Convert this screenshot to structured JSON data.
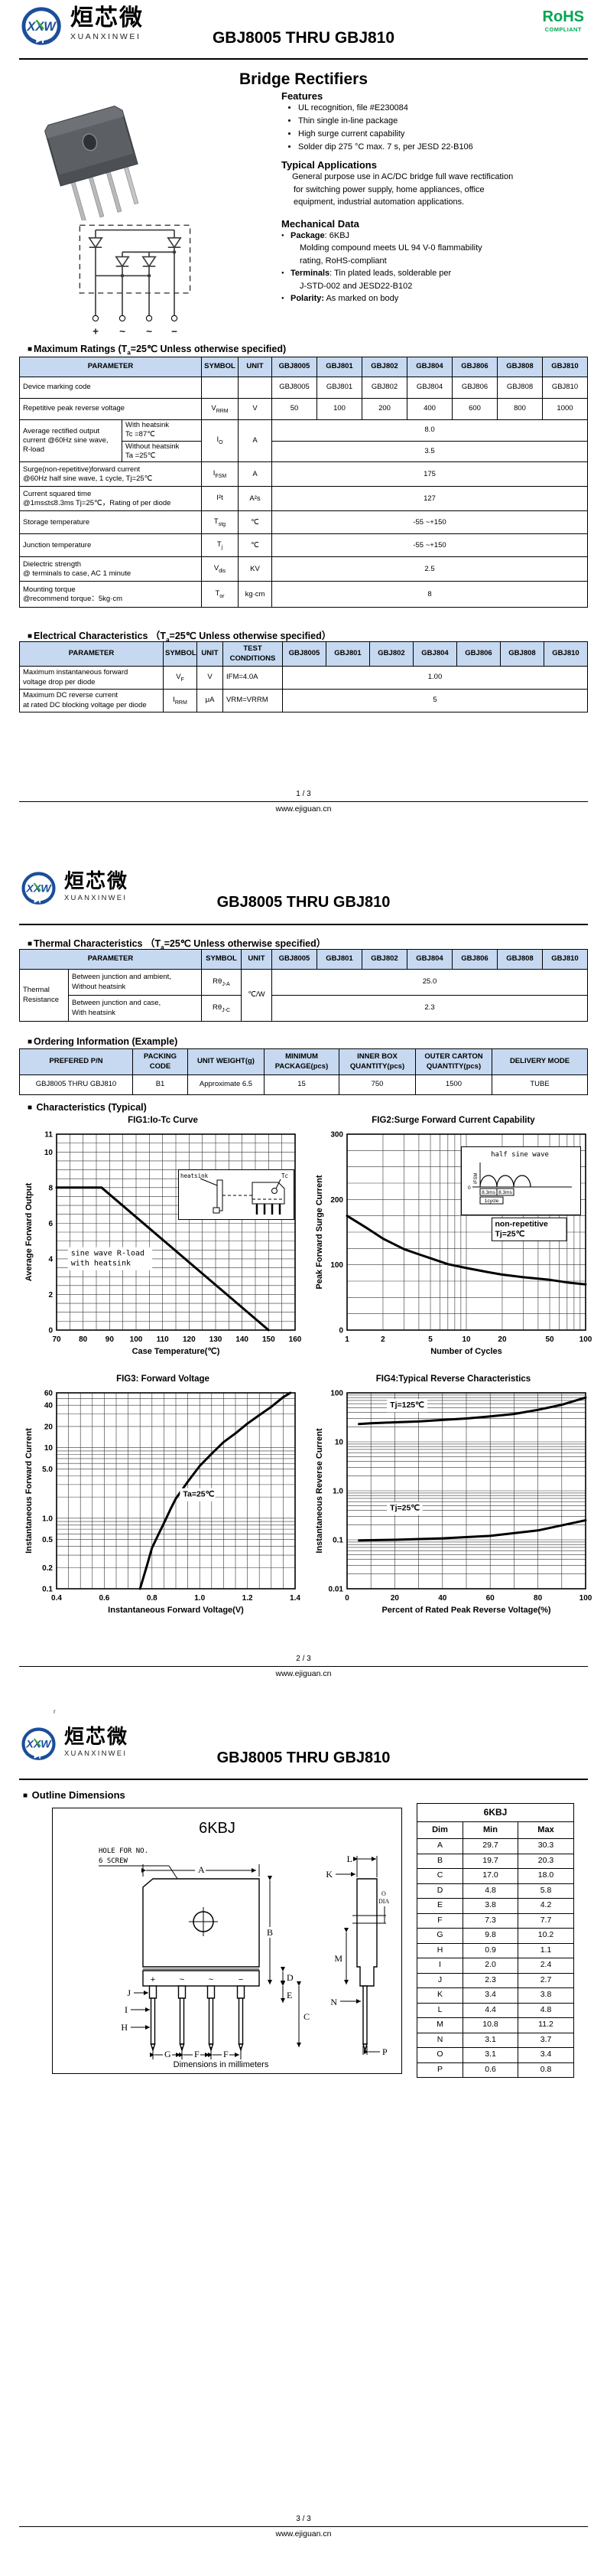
{
  "bullet": "■",
  "brand": {
    "cn": "烜芯微",
    "en": "XUANXINWEI",
    "monogram": "XXW"
  },
  "rohs": {
    "line1": "RoHS",
    "line2": "COMPLIANT"
  },
  "doc_title": "GBJ8005 THRU GBJ810",
  "subtitle": "Bridge Rectifiers",
  "stray": "r",
  "footer": {
    "url": "www.ejiguan.cn",
    "pages": [
      "1 / 3",
      "2 / 3",
      "3 / 3"
    ]
  },
  "products": [
    "GBJ8005",
    "GBJ801",
    "GBJ802",
    "GBJ804",
    "GBJ806",
    "GBJ808",
    "GBJ810"
  ],
  "cond_half": {
    "pre": "(T",
    "sub": "a",
    "post": "=25℃ Unless otherwise specified)"
  },
  "cond_full": {
    "pre": "（T",
    "sub": "a",
    "post": "=25℃ Unless otherwise specified）"
  },
  "features": {
    "heading": "Features",
    "items": [
      "UL recognition, file #E230084",
      "Thin single in-line package",
      "High surge current capability",
      "Solder dip 275 °C max. 7 s, per JESD 22-B106"
    ]
  },
  "apps": {
    "heading": "Typical Applications",
    "lines": [
      "General purpose use in AC/DC bridge full wave rectification",
      "for switching power supply, home appliances, office",
      "equipment, industrial automation applications."
    ]
  },
  "mech": {
    "heading": "Mechanical Data",
    "rows": [
      {
        "b": "Package",
        "t": ": 6KBJ",
        "bullet": true
      },
      {
        "b": "",
        "t": "Molding compound meets UL 94 V-0 flammability",
        "bullet": false
      },
      {
        "b": "",
        "t": "rating, RoHS-compliant",
        "bullet": false
      },
      {
        "b": "Terminals",
        "t": ": Tin plated leads, solderable  per",
        "bullet": true
      },
      {
        "b": "",
        "t": "J-STD-002 and JESD22-B102",
        "bullet": false
      },
      {
        "b": "Polarity:",
        "t": " As marked on body",
        "bullet": true
      }
    ]
  },
  "schematic": {
    "terminals": [
      "+",
      "~",
      "~",
      "−"
    ]
  },
  "max_ratings": {
    "heading": "Maximum Ratings",
    "cols": {
      "param": "PARAMETER",
      "symbol": "SYMBOL",
      "unit": "UNIT"
    },
    "marking": {
      "p": "Device marking code"
    },
    "vrrm": {
      "p": "Repetitive peak reverse voltage",
      "sb": "V",
      "ss": "RRM",
      "unit": "V",
      "vals": [
        "50",
        "100",
        "200",
        "400",
        "600",
        "800",
        "1000"
      ]
    },
    "io": {
      "p1": "Average rectified output",
      "p2": "current  @60Hz sine wave,",
      "p3": "R-load",
      "s1a": "With heatsink",
      "s1b": "Tc =87℃",
      "s2a": "Without heatsink",
      "s2b": "Ta =25℃",
      "sb": "I",
      "ss": "O",
      "unit": "A",
      "v1": "8.0",
      "v2": "3.5"
    },
    "ifsm": {
      "p1": "Surge(non-repetitive)forward current",
      "p2": "@60Hz half sine wave, 1 cycle, Tj=25℃",
      "sb": "I",
      "ss": "FSM",
      "unit": "A",
      "val": "175"
    },
    "i2t": {
      "p1": "Current squared time",
      "p2": "@1ms≤t≤8.3ms Tj=25℃，Rating of per diode",
      "sb": "I²t",
      "ss": "",
      "unit": "A²s",
      "val": "127"
    },
    "tstg": {
      "p1": "Storage temperature",
      "sb": "T",
      "ss": "stg",
      "unit": "℃",
      "val": "-55 ~+150"
    },
    "tj": {
      "p1": "Junction temperature",
      "sb": "T",
      "ss": "j",
      "unit": "℃",
      "val": "-55 ~+150"
    },
    "vdis": {
      "p1": "Dielectric strength",
      "p2": "@ terminals to case, AC 1 minute",
      "sb": "V",
      "ss": "dis",
      "unit": "KV",
      "val": "2.5"
    },
    "tor": {
      "p1": "Mounting torque",
      "p2": "@recommend torque：5kg·cm",
      "sb": "T",
      "ss": "or",
      "unit": "kg·cm",
      "val": "8"
    }
  },
  "electrical": {
    "heading": "Electrical Characteristics",
    "cols": {
      "param": "PARAMETER",
      "symbol": "SYMBOL",
      "unit": "UNIT",
      "test1": "TEST",
      "test2": "CONDITIONS"
    },
    "vf": {
      "p1": "Maximum instantaneous forward",
      "p2": "voltage drop per diode",
      "sb": "V",
      "ss": "F",
      "unit": "V",
      "test": "IFM=4.0A",
      "val": "1.00"
    },
    "irrm": {
      "p1": "Maximum DC reverse current",
      "p2": "at rated DC blocking voltage per diode",
      "sb": "I",
      "ss": "RRM",
      "unit": "μA",
      "test": "VRM=VRRM",
      "val": "5"
    }
  },
  "thermal": {
    "heading": "Thermal Characteristics",
    "cols": {
      "param": "PARAMETER",
      "symbol": "SYMBOL",
      "unit": "UNIT"
    },
    "group1": "Thermal",
    "group2": "Resistance",
    "unit": "℃/W",
    "r1": {
      "p1": "Between junction and ambient,",
      "p2": "Without heatsink",
      "sb": "Rθ",
      "ss": "J-A",
      "val": "25.0"
    },
    "r2": {
      "p1": "Between junction and case,",
      "p2": "With heatsink",
      "sb": "Rθ",
      "ss": "J-C",
      "val": "2.3"
    }
  },
  "ordering": {
    "heading": "Ordering Information (Example)",
    "cols": [
      [
        "PREFERED P/N"
      ],
      [
        "PACKING",
        "CODE"
      ],
      [
        "UNIT WEIGHT(g)"
      ],
      [
        "MINIMUM",
        "PACKAGE(pcs)"
      ],
      [
        "INNER BOX",
        "QUANTITY(pcs)"
      ],
      [
        "OUTER CARTON",
        "QUANTITY(pcs)"
      ],
      [
        "DELIVERY MODE"
      ]
    ],
    "row": [
      "GBJ8005 THRU GBJ810",
      "B1",
      "Approximate  6.5",
      "15",
      "750",
      "1500",
      "TUBE"
    ]
  },
  "charts_heading": "Characteristics (Typical)",
  "chart_data": [
    {
      "id": "fig1",
      "type": "line",
      "title": "FIG1:Io-Tc Curve",
      "xlabel": "Case Temperature(℃)",
      "ylabel": "Average Forward Output",
      "x_scale": "linear",
      "y_scale": "linear",
      "xlim": [
        70,
        160
      ],
      "ylim": [
        0,
        11
      ],
      "x_minor": 5,
      "y_minor": 0.5,
      "xticks": [
        70,
        80,
        90,
        100,
        110,
        120,
        130,
        140,
        150,
        160
      ],
      "xtick_labels": [
        "70",
        "80",
        "90",
        "100",
        "110",
        "120",
        "130",
        "140",
        "150",
        "160"
      ],
      "yticks": [
        0,
        2,
        4,
        6,
        8,
        10,
        11
      ],
      "ytick_labels": [
        "0",
        "2",
        "4",
        "6",
        "8",
        "10",
        "11"
      ],
      "series": [
        {
          "name": "Io with heatsink",
          "points": [
            [
              70,
              8
            ],
            [
              87,
              8
            ],
            [
              150,
              0
            ]
          ]
        }
      ],
      "annotations": [
        {
          "fx": 0.06,
          "fy": 0.62,
          "lines": [
            "sine wave R-load",
            "with heatsink"
          ],
          "box": true,
          "frame": false,
          "mono": true
        }
      ],
      "inset": {
        "heatsink": "heatsink",
        "tc": "Tc"
      }
    },
    {
      "id": "fig2",
      "type": "line",
      "title": "FIG2:Surge Forward Current Capability",
      "xlabel": "Number of Cycles",
      "ylabel": "Peak Forward Surge Current",
      "x_scale": "log",
      "y_scale": "linear",
      "xlim": [
        1,
        100
      ],
      "ylim": [
        0,
        300
      ],
      "y_minor": 25,
      "xticks": [
        1,
        2,
        5,
        10,
        20,
        50,
        100
      ],
      "xtick_labels": [
        "1",
        "2",
        "5",
        "10",
        "20",
        "50",
        "100"
      ],
      "yticks": [
        0,
        100,
        200,
        300
      ],
      "ytick_labels": [
        "0",
        "100",
        "200",
        "300"
      ],
      "series": [
        {
          "name": "IFSM",
          "points": [
            [
              1,
              175
            ],
            [
              1.5,
              155
            ],
            [
              2,
              140
            ],
            [
              3,
              124
            ],
            [
              4,
              116
            ],
            [
              5,
              110
            ],
            [
              7,
              101
            ],
            [
              10,
              95
            ],
            [
              15,
              89
            ],
            [
              20,
              85
            ],
            [
              30,
              81
            ],
            [
              50,
              77
            ],
            [
              70,
              73
            ],
            [
              100,
              70
            ]
          ]
        }
      ],
      "annotations": [
        {
          "fx": 0.62,
          "fy": 0.47,
          "lines": [
            "non-repetitive",
            "Tj=25℃"
          ],
          "box": true,
          "frame": true
        }
      ],
      "inset": {
        "caption": "half sine wave",
        "ifsm": "IFSM",
        "zero": "0",
        "t1": "8.3ms",
        "t2": "8.3ms",
        "cycle": "1cycle"
      }
    },
    {
      "id": "fig3",
      "type": "line",
      "title": "FIG3: Forward Voltage",
      "xlabel": "Instantaneous Forward Voltage(V)",
      "ylabel": "Instantaneous Forward Current",
      "x_scale": "linear",
      "y_scale": "log",
      "xlim": [
        0.4,
        1.4
      ],
      "ylim": [
        0.1,
        60
      ],
      "x_minor": 0.05,
      "xticks": [
        0.4,
        0.6,
        0.8,
        1.0,
        1.2,
        1.4
      ],
      "xtick_labels": [
        "0.4",
        "0.6",
        "0.8",
        "1.0",
        "1.2",
        "1.4"
      ],
      "yticks": [
        0.1,
        0.2,
        0.5,
        1.0,
        5.0,
        10,
        20,
        40,
        60
      ],
      "ytick_labels": [
        "0.1",
        "0.2",
        "0.5",
        "1.0",
        "5.0",
        "10",
        "20",
        "40",
        "60"
      ],
      "series": [
        {
          "name": "VF Ta=25℃",
          "points": [
            [
              0.75,
              0.1
            ],
            [
              0.78,
              0.22
            ],
            [
              0.8,
              0.38
            ],
            [
              0.83,
              0.62
            ],
            [
              0.85,
              0.85
            ],
            [
              0.88,
              1.4
            ],
            [
              0.9,
              1.9
            ],
            [
              0.95,
              3.3
            ],
            [
              1.0,
              5.5
            ],
            [
              1.05,
              8.2
            ],
            [
              1.1,
              12
            ],
            [
              1.15,
              16
            ],
            [
              1.2,
              22
            ],
            [
              1.25,
              29
            ],
            [
              1.3,
              38
            ],
            [
              1.35,
              52
            ],
            [
              1.38,
              60
            ]
          ]
        }
      ],
      "annotations": [
        {
          "fx": 0.53,
          "fy": 0.53,
          "lines": [
            "Ta=25℃"
          ],
          "box": true,
          "frame": false
        }
      ]
    },
    {
      "id": "fig4",
      "type": "line",
      "title": "FIG4:Typical Reverse Characteristics",
      "xlabel": "Percent of Rated Peak Reverse Voltage(%)",
      "ylabel": "Instantaneous Reverse Current",
      "x_scale": "linear",
      "y_scale": "log",
      "xlim": [
        0,
        100
      ],
      "ylim": [
        0.01,
        100
      ],
      "x_minor": 10,
      "xticks": [
        0,
        20,
        40,
        60,
        80,
        100
      ],
      "xtick_labels": [
        "0",
        "20",
        "40",
        "60",
        "80",
        "100"
      ],
      "yticks": [
        0.01,
        0.1,
        1.0,
        10,
        100
      ],
      "ytick_labels": [
        "0.01",
        "0.1",
        "1.0",
        "10",
        "100"
      ],
      "series": [
        {
          "name": "Tj=125℃",
          "points": [
            [
              5,
              23
            ],
            [
              10,
              24
            ],
            [
              20,
              25
            ],
            [
              30,
              26
            ],
            [
              40,
              28
            ],
            [
              50,
              30
            ],
            [
              60,
              33
            ],
            [
              70,
              37
            ],
            [
              80,
              45
            ],
            [
              90,
              57
            ],
            [
              100,
              80
            ]
          ]
        },
        {
          "name": "Tj=25℃",
          "points": [
            [
              5,
              0.097
            ],
            [
              20,
              0.1
            ],
            [
              40,
              0.107
            ],
            [
              60,
              0.12
            ],
            [
              80,
              0.155
            ],
            [
              100,
              0.25
            ]
          ]
        }
      ],
      "annotations": [
        {
          "fx": 0.18,
          "fy": 0.075,
          "lines": [
            "Tj=125℃"
          ],
          "box": true,
          "frame": false
        },
        {
          "fx": 0.18,
          "fy": 0.6,
          "lines": [
            "Tj=25℃"
          ],
          "box": true,
          "frame": false
        }
      ]
    }
  ],
  "outline": {
    "heading": "Outline Dimensions",
    "pkg": "6KBJ",
    "hole1": "HOLE FOR NO.",
    "hole2": "6 SCREW",
    "odia1": "O",
    "odia2": "DIA",
    "caption": "Dimensions in millimeters",
    "table_title": "6KBJ",
    "cols": [
      "Dim",
      "Min",
      "Max"
    ],
    "rows": [
      {
        "dim": "A",
        "min": "29.7",
        "max": "30.3"
      },
      {
        "dim": "B",
        "min": "19.7",
        "max": "20.3"
      },
      {
        "dim": "C",
        "min": "17.0",
        "max": "18.0"
      },
      {
        "dim": "D",
        "min": "4.8",
        "max": "5.8"
      },
      {
        "dim": "E",
        "min": "3.8",
        "max": "4.2"
      },
      {
        "dim": "F",
        "min": "7.3",
        "max": "7.7"
      },
      {
        "dim": "G",
        "min": "9.8",
        "max": "10.2"
      },
      {
        "dim": "H",
        "min": "0.9",
        "max": "1.1"
      },
      {
        "dim": "I",
        "min": "2.0",
        "max": "2.4"
      },
      {
        "dim": "J",
        "min": "2.3",
        "max": "2.7"
      },
      {
        "dim": "K",
        "min": "3.4",
        "max": "3.8"
      },
      {
        "dim": "L",
        "min": "4.4",
        "max": "4.8"
      },
      {
        "dim": "M",
        "min": "10.8",
        "max": "11.2"
      },
      {
        "dim": "N",
        "min": "3.1",
        "max": "3.7"
      },
      {
        "dim": "O",
        "min": "3.1",
        "max": "3.4"
      },
      {
        "dim": "P",
        "min": "0.6",
        "max": "0.8"
      }
    ]
  }
}
